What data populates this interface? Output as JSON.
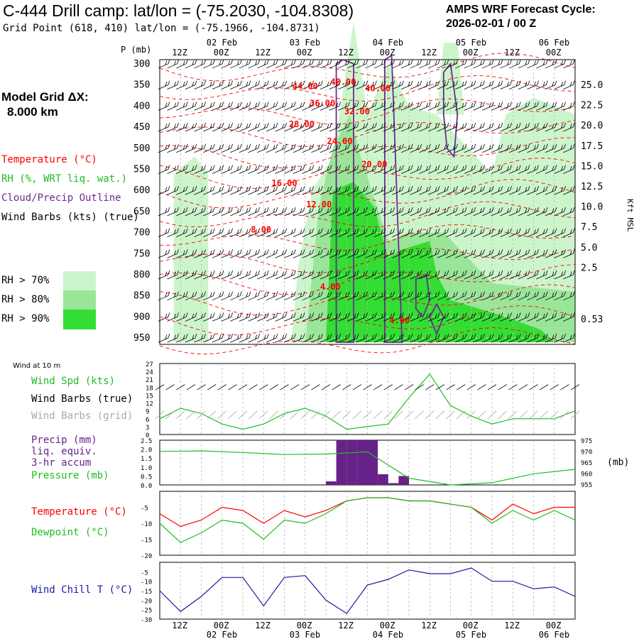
{
  "header": {
    "title": "C-444 Drill camp:  lat/lon = (-75.2030, -104.8308)",
    "subtitle": "Grid Point (618, 410) lat/lon = (-75.1966, -104.8731)",
    "cycle_line1": "AMPS WRF Forecast Cycle:",
    "cycle_line2": "2026-02-01 / 00  Z"
  },
  "sidebar": {
    "grid_label": "Model Grid ΔX:",
    "grid_value": "8.000 km",
    "legend_temperature": "Temperature (°C)",
    "legend_rh": "RH (%, WRT liq. wat.)",
    "legend_cloud": "Cloud/Precip Outline",
    "legend_wind": "Wind Barbs (kts) (true)",
    "rh_70": "RH > 70%",
    "rh_80": "RH > 80%",
    "rh_90": "RH > 90%",
    "wind_at_10m": "Wind at 10 m",
    "wind_spd": "Wind Spd (kts)",
    "wind_barbs_true": "Wind Barbs (true)",
    "wind_barbs_grid": "Wind Barbs (grid)",
    "precip_1": "Precip (mm)",
    "precip_2": "liq. equiv.",
    "precip_3": "3-hr accum",
    "pressure": "Pressure (mb)",
    "temp2": "Temperature (°C)",
    "dewpoint": "Dewpoint (°C)",
    "windchill": "Wind Chill T (°C)",
    "p_axis_label": "P (mb)",
    "kft_label": "Kft MSL",
    "mb_label": "(mb)"
  },
  "colors": {
    "temperature": "#ff0000",
    "rh70": "#ccf5cc",
    "rh80": "#99e699",
    "rh90": "#33dd33",
    "cloud": "#6a2c91",
    "wind_speed": "#22bb22",
    "precip": "#662288",
    "windchill": "#1a1aa0",
    "grid_barbs": "#aaaaaa"
  },
  "time_axis": {
    "hour_labels": [
      "12Z",
      "00Z",
      "12Z",
      "00Z",
      "12Z",
      "00Z",
      "12Z",
      "00Z",
      "12Z",
      "00Z"
    ],
    "date_labels": [
      "02 Feb",
      "03 Feb",
      "04 Feb",
      "05 Feb",
      "06 Feb"
    ]
  },
  "chart_data": [
    {
      "type": "heatmap",
      "panel": "cross-section",
      "y_levels_mb": [
        300,
        350,
        400,
        450,
        500,
        550,
        600,
        650,
        700,
        750,
        800,
        850,
        900,
        950
      ],
      "y_kft_ticks": [
        "25.0",
        "22.5",
        "20.0",
        "17.5",
        "15.0",
        "12.5",
        "10.0",
        "7.5",
        "5.0",
        "2.5",
        "0.53"
      ],
      "temperature_labels": [
        "44.00",
        "48.00",
        "40.00",
        "36.00",
        "32.00",
        "28.00",
        "24.00",
        "20.00",
        "16.00",
        "12.00",
        "8.00",
        "4.00",
        "4.00"
      ]
    },
    {
      "type": "line",
      "panel": "wind speed",
      "x_hours": [
        0,
        6,
        12,
        18,
        24,
        30,
        36,
        42,
        48,
        54,
        60,
        66,
        72,
        78,
        84,
        90,
        96,
        102,
        108,
        114,
        120
      ],
      "series": [
        {
          "name": "Wind Spd (kts)",
          "values": [
            6,
            10,
            8,
            4,
            2,
            4,
            8,
            10,
            7,
            2,
            3,
            4,
            14,
            23,
            11,
            7,
            4,
            6,
            6,
            6,
            9
          ]
        }
      ],
      "y_ticks": [
        0,
        3,
        6,
        9,
        12,
        15,
        18,
        21,
        24,
        27
      ],
      "ylim": [
        0,
        27
      ]
    },
    {
      "type": "bar",
      "panel": "precip",
      "x_hours": [
        48,
        51,
        54,
        57,
        60,
        63,
        66,
        69
      ],
      "values": [
        0.2,
        2.5,
        2.5,
        2.5,
        2.5,
        0.6,
        0.1,
        0.5
      ],
      "y_ticks": [
        "2.5",
        "2.0",
        "1.5",
        "1.0",
        "0.5",
        "0.0"
      ],
      "pressure_ticks": [
        "975",
        "970",
        "965",
        "960",
        "955"
      ],
      "pressure_x_hours": [
        0,
        12,
        24,
        36,
        48,
        60,
        72,
        84,
        96,
        108,
        120
      ],
      "pressure_values": [
        970,
        970.2,
        969.5,
        968.6,
        968.8,
        969.8,
        958,
        955,
        956,
        960,
        962
      ]
    },
    {
      "type": "line",
      "panel": "temperature",
      "x_hours": [
        0,
        6,
        12,
        18,
        24,
        30,
        36,
        42,
        48,
        54,
        60,
        66,
        72,
        78,
        84,
        90,
        96,
        102,
        108,
        114,
        120
      ],
      "series": [
        {
          "name": "Temperature (°C)",
          "values": [
            -7,
            -11,
            -9,
            -5,
            -6,
            -10,
            -6,
            -8,
            -6,
            -3,
            -2,
            -2,
            -3,
            -3,
            -4,
            -5,
            -9,
            -4,
            -7,
            -5,
            -5
          ]
        },
        {
          "name": "Dewpoint (°C)",
          "values": [
            -10,
            -16,
            -13,
            -9,
            -10,
            -15,
            -9,
            -10,
            -7,
            -3,
            -2,
            -2,
            -3,
            -3,
            -4,
            -5,
            -10,
            -6,
            -9,
            -6,
            -9
          ]
        }
      ],
      "y_ticks": [
        -5,
        -10,
        -15,
        -20
      ],
      "ylim": [
        -20,
        0
      ]
    },
    {
      "type": "line",
      "panel": "wind chill",
      "x_hours": [
        0,
        6,
        12,
        18,
        24,
        30,
        36,
        42,
        48,
        54,
        60,
        66,
        72,
        78,
        84,
        90,
        96,
        102,
        108,
        114,
        120
      ],
      "series": [
        {
          "name": "Wind Chill T (°C)",
          "values": [
            -15,
            -26,
            -18,
            -8,
            -8,
            -23,
            -8,
            -7,
            -20,
            -27,
            -12,
            -9,
            -4,
            -6,
            -6,
            -3,
            -10,
            -10,
            -14,
            -13,
            -18
          ]
        }
      ],
      "y_ticks": [
        -5,
        -10,
        -15,
        -20,
        -25,
        -30
      ],
      "ylim": [
        -30,
        0
      ]
    }
  ]
}
